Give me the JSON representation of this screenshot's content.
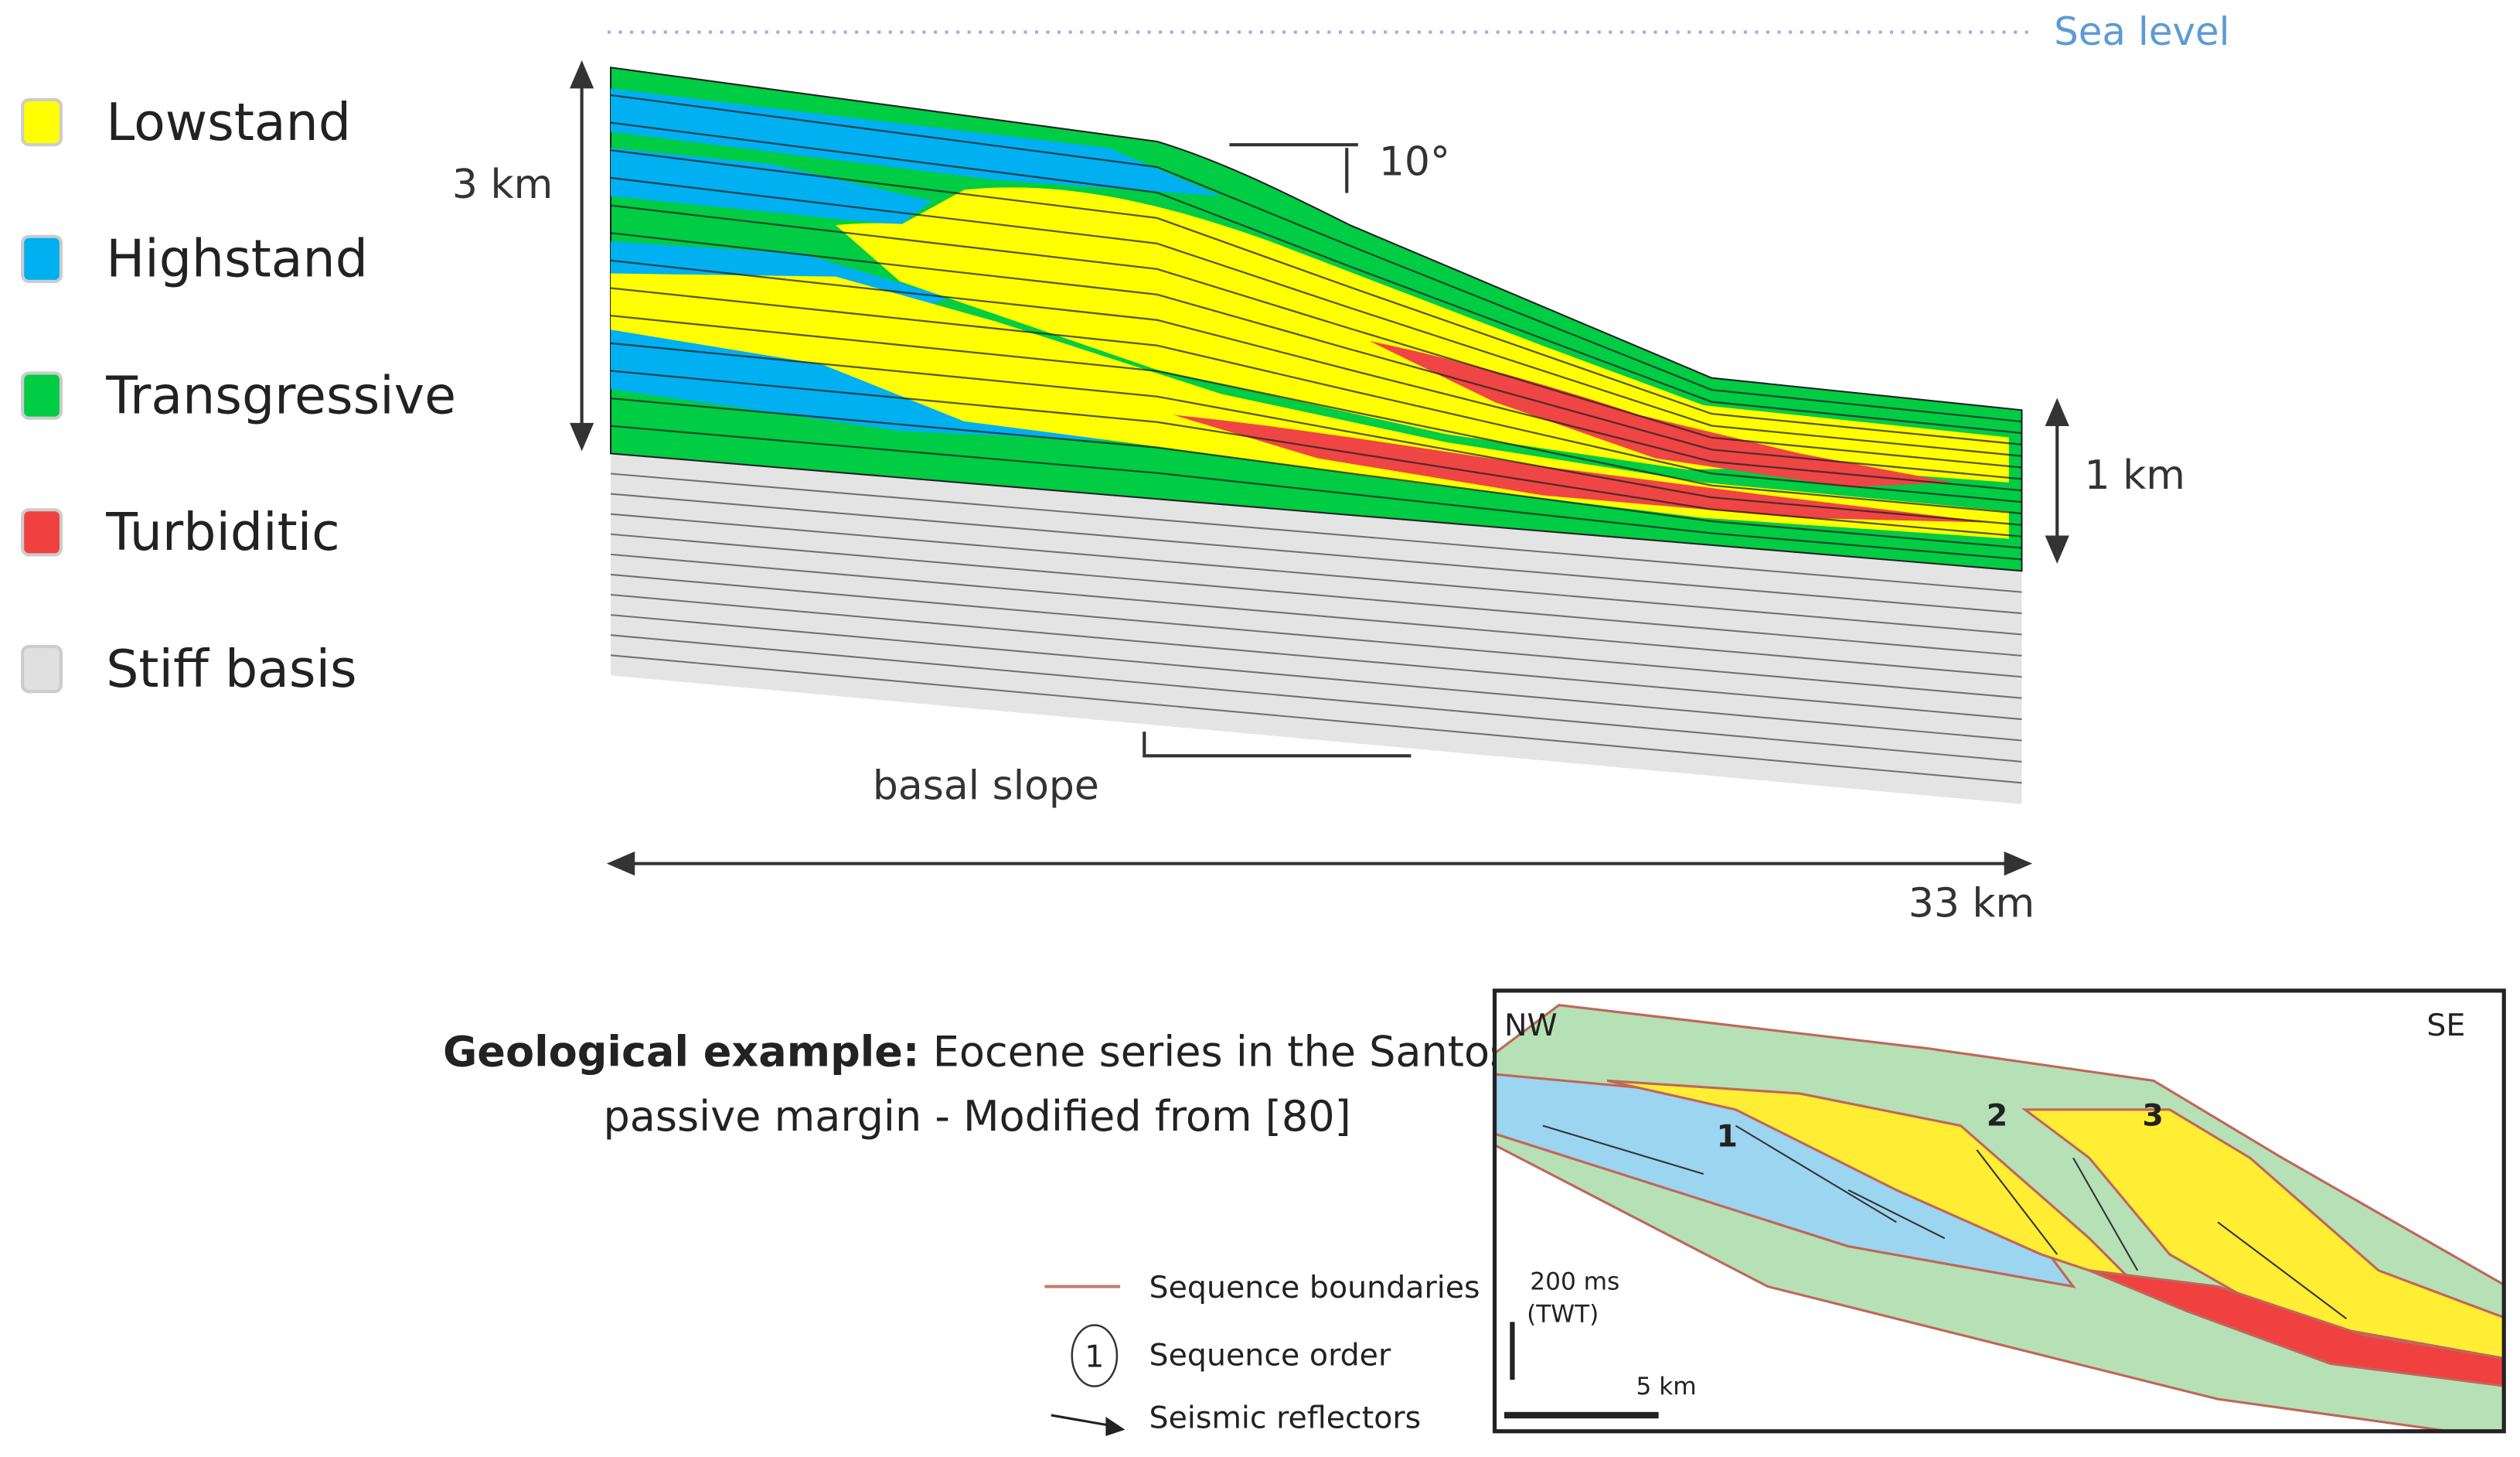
{
  "sea_level": "Sea level",
  "legend": [
    {
      "label": "Lowstand",
      "color": "#ffff00"
    },
    {
      "label": "Highstand",
      "color": "#00b0f0"
    },
    {
      "label": "Transgressive",
      "color": "#00cc44"
    },
    {
      "label": "Turbiditic",
      "color": "#f04040"
    },
    {
      "label": "Stiff basis",
      "color": "#e0e0e0"
    }
  ],
  "dimensions": {
    "height_left": "3 km",
    "height_right": "1 km",
    "width": "33 km",
    "angle": "10°",
    "basal": "basal slope"
  },
  "example": {
    "title_bold": "Geological example:",
    "title_lines": [
      "Eocene series in the Santos",
      "passive margin - Modified from [80]"
    ]
  },
  "inset": {
    "nw": "NW",
    "se": "SE",
    "sequences": [
      "1",
      "2",
      "3"
    ],
    "scale_time": "200 ms",
    "scale_time_unit": "(TWT)",
    "scale_dist": "5 km"
  },
  "inset_legend": [
    {
      "label": "Sequence boundaries"
    },
    {
      "label": "Sequence order",
      "symbol": "1"
    },
    {
      "label": "Seismic reflectors"
    }
  ]
}
